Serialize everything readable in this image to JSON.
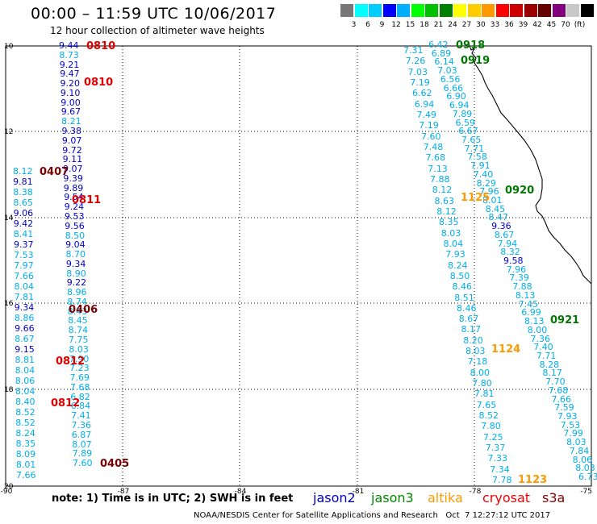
{
  "title": "00:00 – 11:59 UTC 10/06/2017",
  "subtitle": "12 hour collection of altimeter wave heights",
  "scale": {
    "colors": [
      "#777777",
      "#00ffff",
      "#00ccff",
      "#0000ff",
      "#00b0ff",
      "#00ff00",
      "#00c000",
      "#008000",
      "#ffff00",
      "#ffcc00",
      "#ff9900",
      "#ff0000",
      "#cc0000",
      "#990000",
      "#660000",
      "#800080",
      "#c8c8c8",
      "#000000"
    ],
    "labels": [
      "3",
      "6",
      "9",
      "12",
      "15",
      "18",
      "21",
      "24",
      "27",
      "30",
      "33",
      "36",
      "39",
      "42",
      "45",
      "70",
      "(ft)"
    ]
  },
  "map": {
    "lat_labels": [
      "10",
      "12",
      "14",
      "16",
      "18",
      "20"
    ],
    "lon_labels": [
      "-90",
      "-87",
      "-84",
      "-81",
      "-78",
      "-75"
    ]
  },
  "tracks": {
    "t1": [
      "9.44",
      "8.73",
      "9.21",
      "9.47",
      "9.20",
      "9.10",
      "9.00",
      "9.67",
      "8.21",
      "9.38",
      "9.07",
      "9.72",
      "9.11",
      "9.07",
      "9.39",
      "9.89",
      "9.54",
      "9.24",
      "9.53",
      "9.56",
      "8.50",
      "9.04",
      "8.70",
      "9.34",
      "8.90",
      "9.22",
      "8.96",
      "8.74",
      "8.43",
      "8.45",
      "8.74",
      "7.75",
      "8.03",
      "7.90",
      "7.23",
      "7.69",
      "7.68",
      "6.82",
      "6.84",
      "7.41",
      "7.36",
      "6.87",
      "8.07",
      "7.89",
      "7.60"
    ],
    "t2": [
      "8.12",
      "9.81",
      "8.38",
      "8.65",
      "9.06",
      "9.42",
      "8.41",
      "9.37",
      "7.53",
      "7.97",
      "7.66",
      "8.04",
      "7.81",
      "9.34",
      "8.86",
      "9.66",
      "8.67",
      "9.15",
      "8.81",
      "8.04",
      "8.06",
      "8.04",
      "8.40",
      "8.52",
      "8.52",
      "8.24",
      "8.35",
      "8.09",
      "8.01",
      "7.66"
    ],
    "t3": [
      "7.31",
      "7.26",
      "7.03",
      "7.19",
      "6.62",
      "6.94",
      "7.49",
      "7.19",
      "7.60",
      "7.48",
      "7.68",
      "7.13",
      "7.88",
      "8.12",
      "8.63",
      "8.12",
      "8.35",
      "8.03",
      "8.04",
      "7.93",
      "8.24",
      "8.50",
      "8.46",
      "8.51",
      "8.46",
      "8.67",
      "8.17",
      "8.20",
      "8.03",
      "7.18",
      "8.00",
      "7.80",
      "7.81",
      "7.65",
      "8.52",
      "7.80",
      "7.25",
      "7.37",
      "7.33",
      "7.34",
      "7.78"
    ],
    "t4": [
      "6.42",
      "6.89",
      "6.14",
      "7.03",
      "6.56",
      "6.66",
      "6.90",
      "6.94",
      "7.89",
      "6.59",
      "6.67",
      "7.65",
      "7.71",
      "7.58",
      "7.91",
      "7.40",
      "8.29",
      "7.96",
      "8.01",
      "8.45",
      "8.47",
      "9.36",
      "8.67",
      "7.94",
      "8.32",
      "9.58",
      "7.96",
      "7.39",
      "7.88",
      "8.13",
      "7.45",
      "6.99",
      "8.13",
      "8.00",
      "7.36",
      "7.40",
      "7.71",
      "8.28",
      "8.17",
      "7.70",
      "7.68",
      "7.66",
      "7.59",
      "7.93",
      "7.53",
      "7.99",
      "8.03",
      "7.84",
      "8.06",
      "8.03",
      "6.73"
    ]
  },
  "passes": {
    "p0810a": "0810",
    "p0810b": "0810",
    "p0407": "0407",
    "p0811": "0811",
    "p0406": "0406",
    "p0812a": "0812",
    "p0812b": "0812",
    "p0405": "0405",
    "p0918": "0918",
    "p0919": "0919",
    "p1125": "1125",
    "p0920": "0920",
    "p0921": "0921",
    "p1124": "1124",
    "p1123": "1123"
  },
  "note": "note: 1) Time is in UTC; 2) SWH is in feet",
  "legend": {
    "jason2": {
      "label": "jason2",
      "color": "#0000cc"
    },
    "jason3": {
      "label": "jason3",
      "color": "#008800"
    },
    "altika": {
      "label": "altika",
      "color": "#ff9900"
    },
    "cryosat": {
      "label": "cryosat",
      "color": "#ee0000"
    },
    "s3a": {
      "label": "s3a",
      "color": "#880000"
    }
  },
  "credit": "NOAA/NESDIS Center for Satellite Applications and Research   Oct  7 12:27:12 UTC 2017"
}
